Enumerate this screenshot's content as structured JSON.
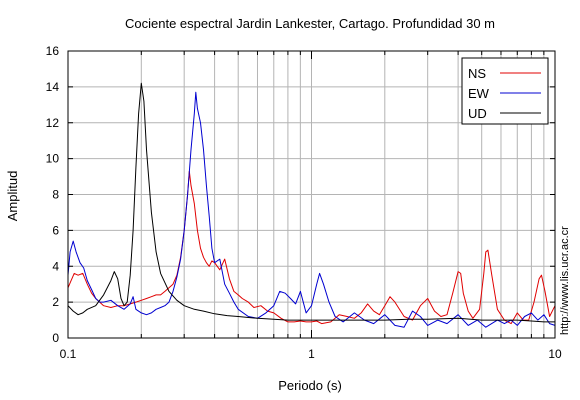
{
  "chart_data": {
    "type": "line",
    "title": "Cociente espectral Jardin Lankester, Cartago. Profundidad 30 m",
    "xlabel": "Periodo (s)",
    "ylabel": "Amplitud",
    "x_scale": "log",
    "xlim": [
      0.1,
      10
    ],
    "ylim": [
      0,
      16
    ],
    "x_tick_labels": [
      "0.1",
      "1",
      "10"
    ],
    "y_ticks": [
      0,
      2,
      4,
      6,
      8,
      10,
      12,
      14,
      16
    ],
    "grid": true,
    "legend_position": "top-right",
    "side_text": "http://www.lis.ucr.ac.cr",
    "series": [
      {
        "name": "NS",
        "color": "#e00000",
        "points": [
          [
            0.1,
            2.8
          ],
          [
            0.103,
            3.2
          ],
          [
            0.106,
            3.6
          ],
          [
            0.11,
            3.5
          ],
          [
            0.115,
            3.6
          ],
          [
            0.12,
            3.0
          ],
          [
            0.125,
            2.5
          ],
          [
            0.13,
            2.2
          ],
          [
            0.135,
            2.0
          ],
          [
            0.14,
            1.8
          ],
          [
            0.15,
            1.7
          ],
          [
            0.16,
            1.8
          ],
          [
            0.17,
            1.8
          ],
          [
            0.18,
            1.9
          ],
          [
            0.19,
            2.0
          ],
          [
            0.2,
            2.1
          ],
          [
            0.21,
            2.2
          ],
          [
            0.22,
            2.3
          ],
          [
            0.23,
            2.4
          ],
          [
            0.24,
            2.4
          ],
          [
            0.25,
            2.6
          ],
          [
            0.26,
            2.8
          ],
          [
            0.27,
            3.0
          ],
          [
            0.28,
            3.5
          ],
          [
            0.29,
            4.5
          ],
          [
            0.3,
            6.0
          ],
          [
            0.31,
            8.0
          ],
          [
            0.315,
            9.3
          ],
          [
            0.32,
            8.5
          ],
          [
            0.33,
            7.5
          ],
          [
            0.34,
            6.0
          ],
          [
            0.35,
            5.0
          ],
          [
            0.36,
            4.5
          ],
          [
            0.37,
            4.2
          ],
          [
            0.38,
            4.0
          ],
          [
            0.39,
            4.3
          ],
          [
            0.4,
            4.2
          ],
          [
            0.42,
            3.8
          ],
          [
            0.44,
            4.4
          ],
          [
            0.46,
            3.3
          ],
          [
            0.48,
            2.6
          ],
          [
            0.5,
            2.4
          ],
          [
            0.52,
            2.2
          ],
          [
            0.55,
            2.0
          ],
          [
            0.58,
            1.7
          ],
          [
            0.62,
            1.8
          ],
          [
            0.66,
            1.5
          ],
          [
            0.7,
            1.4
          ],
          [
            0.75,
            1.1
          ],
          [
            0.8,
            0.9
          ],
          [
            0.85,
            0.9
          ],
          [
            0.9,
            0.95
          ],
          [
            0.95,
            0.9
          ],
          [
            1.0,
            0.9
          ],
          [
            1.05,
            0.95
          ],
          [
            1.1,
            0.8
          ],
          [
            1.2,
            0.9
          ],
          [
            1.3,
            1.3
          ],
          [
            1.4,
            1.2
          ],
          [
            1.5,
            1.1
          ],
          [
            1.6,
            1.4
          ],
          [
            1.7,
            1.9
          ],
          [
            1.8,
            1.5
          ],
          [
            1.9,
            1.3
          ],
          [
            2.0,
            1.8
          ],
          [
            2.1,
            2.3
          ],
          [
            2.2,
            2.0
          ],
          [
            2.4,
            1.2
          ],
          [
            2.6,
            1.0
          ],
          [
            2.8,
            1.8
          ],
          [
            3.0,
            2.2
          ],
          [
            3.2,
            1.5
          ],
          [
            3.4,
            1.2
          ],
          [
            3.6,
            1.3
          ],
          [
            3.8,
            2.5
          ],
          [
            4.0,
            3.7
          ],
          [
            4.1,
            3.6
          ],
          [
            4.2,
            2.5
          ],
          [
            4.4,
            1.5
          ],
          [
            4.6,
            1.1
          ],
          [
            4.9,
            1.6
          ],
          [
            5.1,
            3.6
          ],
          [
            5.2,
            4.8
          ],
          [
            5.3,
            4.9
          ],
          [
            5.5,
            3.5
          ],
          [
            5.8,
            1.6
          ],
          [
            6.2,
            1.0
          ],
          [
            6.6,
            0.8
          ],
          [
            7.0,
            1.4
          ],
          [
            7.4,
            1.0
          ],
          [
            7.8,
            1.0
          ],
          [
            8.2,
            2.0
          ],
          [
            8.6,
            3.3
          ],
          [
            8.8,
            3.5
          ],
          [
            9.1,
            2.6
          ],
          [
            9.5,
            1.2
          ],
          [
            10.0,
            1.8
          ]
        ]
      },
      {
        "name": "EW",
        "color": "#0000d0",
        "points": [
          [
            0.1,
            3.5
          ],
          [
            0.102,
            4.8
          ],
          [
            0.105,
            5.4
          ],
          [
            0.108,
            4.8
          ],
          [
            0.112,
            4.2
          ],
          [
            0.116,
            3.9
          ],
          [
            0.12,
            3.2
          ],
          [
            0.125,
            2.7
          ],
          [
            0.13,
            2.2
          ],
          [
            0.135,
            2.0
          ],
          [
            0.14,
            2.0
          ],
          [
            0.15,
            2.1
          ],
          [
            0.16,
            1.8
          ],
          [
            0.17,
            1.6
          ],
          [
            0.18,
            1.9
          ],
          [
            0.185,
            2.3
          ],
          [
            0.19,
            1.6
          ],
          [
            0.2,
            1.4
          ],
          [
            0.21,
            1.3
          ],
          [
            0.22,
            1.4
          ],
          [
            0.23,
            1.6
          ],
          [
            0.24,
            1.7
          ],
          [
            0.25,
            1.8
          ],
          [
            0.26,
            2.0
          ],
          [
            0.27,
            2.6
          ],
          [
            0.28,
            3.4
          ],
          [
            0.29,
            4.4
          ],
          [
            0.3,
            6.0
          ],
          [
            0.31,
            8.0
          ],
          [
            0.32,
            10.5
          ],
          [
            0.33,
            12.5
          ],
          [
            0.335,
            13.7
          ],
          [
            0.34,
            12.8
          ],
          [
            0.35,
            12.0
          ],
          [
            0.36,
            10.5
          ],
          [
            0.37,
            8.5
          ],
          [
            0.38,
            6.8
          ],
          [
            0.39,
            5.0
          ],
          [
            0.4,
            4.2
          ],
          [
            0.42,
            4.4
          ],
          [
            0.44,
            3.0
          ],
          [
            0.46,
            2.5
          ],
          [
            0.48,
            2.0
          ],
          [
            0.5,
            1.6
          ],
          [
            0.55,
            1.2
          ],
          [
            0.6,
            1.1
          ],
          [
            0.65,
            1.4
          ],
          [
            0.7,
            1.8
          ],
          [
            0.74,
            2.6
          ],
          [
            0.78,
            2.5
          ],
          [
            0.82,
            2.2
          ],
          [
            0.86,
            1.9
          ],
          [
            0.9,
            2.6
          ],
          [
            0.95,
            1.4
          ],
          [
            1.0,
            1.8
          ],
          [
            1.05,
            3.0
          ],
          [
            1.08,
            3.6
          ],
          [
            1.12,
            3.0
          ],
          [
            1.18,
            2.0
          ],
          [
            1.25,
            1.2
          ],
          [
            1.35,
            0.9
          ],
          [
            1.5,
            1.4
          ],
          [
            1.65,
            1.0
          ],
          [
            1.8,
            0.8
          ],
          [
            2.0,
            1.3
          ],
          [
            2.2,
            0.7
          ],
          [
            2.4,
            0.6
          ],
          [
            2.6,
            1.5
          ],
          [
            2.8,
            1.2
          ],
          [
            3.0,
            0.7
          ],
          [
            3.3,
            1.0
          ],
          [
            3.6,
            0.8
          ],
          [
            4.0,
            1.3
          ],
          [
            4.4,
            0.7
          ],
          [
            4.8,
            1.0
          ],
          [
            5.2,
            0.6
          ],
          [
            5.8,
            1.0
          ],
          [
            6.2,
            0.8
          ],
          [
            6.6,
            1.0
          ],
          [
            7.0,
            0.7
          ],
          [
            7.5,
            1.2
          ],
          [
            8.0,
            1.4
          ],
          [
            8.5,
            1.0
          ],
          [
            9.0,
            1.3
          ],
          [
            9.5,
            0.8
          ],
          [
            10.0,
            0.7
          ]
        ]
      },
      {
        "name": "UD",
        "color": "#000000",
        "points": [
          [
            0.1,
            1.8
          ],
          [
            0.105,
            1.5
          ],
          [
            0.11,
            1.3
          ],
          [
            0.115,
            1.4
          ],
          [
            0.12,
            1.6
          ],
          [
            0.13,
            1.8
          ],
          [
            0.14,
            2.4
          ],
          [
            0.15,
            3.2
          ],
          [
            0.155,
            3.7
          ],
          [
            0.16,
            3.3
          ],
          [
            0.165,
            2.2
          ],
          [
            0.17,
            1.8
          ],
          [
            0.175,
            2.0
          ],
          [
            0.18,
            3.5
          ],
          [
            0.185,
            6.0
          ],
          [
            0.19,
            9.5
          ],
          [
            0.195,
            12.5
          ],
          [
            0.2,
            14.2
          ],
          [
            0.205,
            13.2
          ],
          [
            0.21,
            10.5
          ],
          [
            0.22,
            7.0
          ],
          [
            0.23,
            4.8
          ],
          [
            0.24,
            3.6
          ],
          [
            0.26,
            2.6
          ],
          [
            0.28,
            2.1
          ],
          [
            0.3,
            1.8
          ],
          [
            0.33,
            1.6
          ],
          [
            0.36,
            1.5
          ],
          [
            0.4,
            1.35
          ],
          [
            0.45,
            1.25
          ],
          [
            0.5,
            1.2
          ],
          [
            0.6,
            1.1
          ],
          [
            0.7,
            1.05
          ],
          [
            0.8,
            1.0
          ],
          [
            0.9,
            1.0
          ],
          [
            1.0,
            1.0
          ],
          [
            1.2,
            1.0
          ],
          [
            1.5,
            1.0
          ],
          [
            2.0,
            1.0
          ],
          [
            2.5,
            1.05
          ],
          [
            3.0,
            1.05
          ],
          [
            4.0,
            1.1
          ],
          [
            5.0,
            1.0
          ],
          [
            6.0,
            1.0
          ],
          [
            7.0,
            1.0
          ],
          [
            8.0,
            0.95
          ],
          [
            9.0,
            0.9
          ],
          [
            10.0,
            0.9
          ]
        ]
      }
    ]
  }
}
